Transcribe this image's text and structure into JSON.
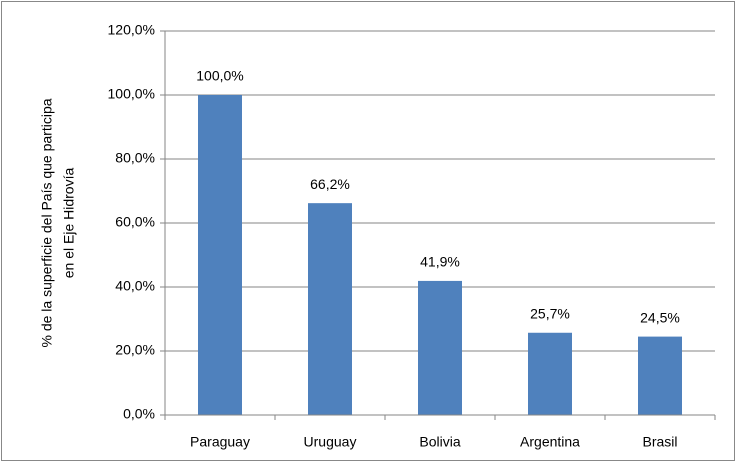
{
  "chart_data": {
    "type": "bar",
    "ylabel": [
      "% de la superficie del País que participa",
      "en el Eje Hidrovía"
    ],
    "categories": [
      "Paraguay",
      "Uruguay",
      "Bolivia",
      "Argentina",
      "Brasil"
    ],
    "values": [
      100,
      66.2,
      41.9,
      25.7,
      24.5
    ],
    "value_labels": [
      "100,0%",
      "66,2%",
      "41,9%",
      "25,7%",
      "24,5%"
    ],
    "color": "#4f81bd",
    "ylim": [
      0,
      120
    ],
    "yticks": [
      {
        "value": 0,
        "label": "0,0%"
      },
      {
        "value": 20,
        "label": "20,0%"
      },
      {
        "value": 40,
        "label": "40,0%"
      },
      {
        "value": 60,
        "label": "60,0%"
      },
      {
        "value": 80,
        "label": "80,0%"
      },
      {
        "value": 100,
        "label": "100,0%"
      },
      {
        "value": 120,
        "label": "120,0%"
      }
    ],
    "grid": true
  }
}
